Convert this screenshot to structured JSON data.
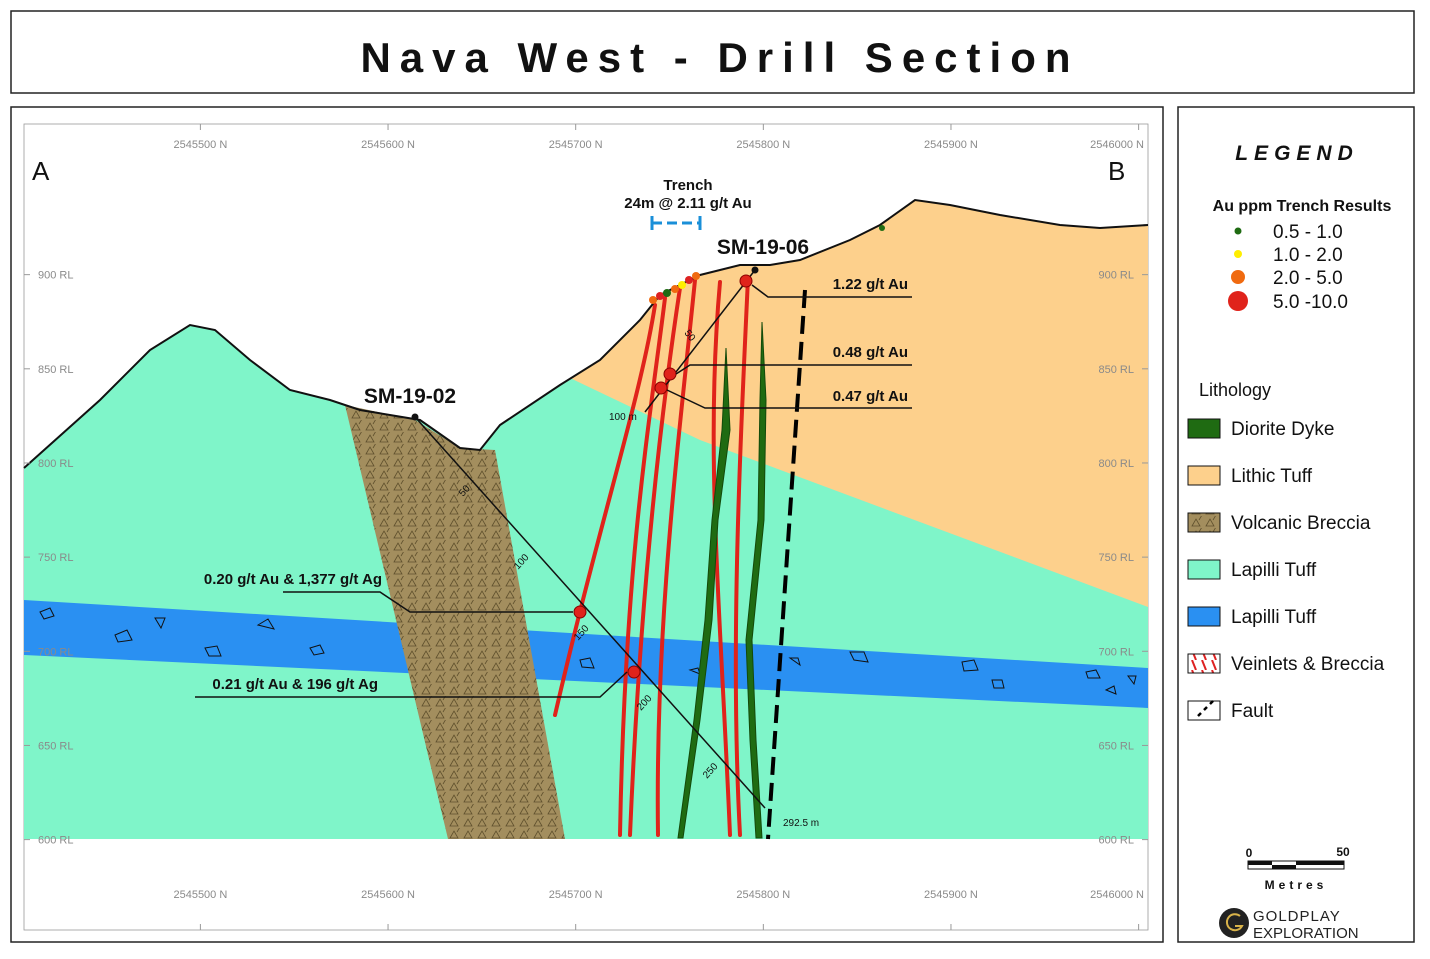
{
  "title": "Nava West - Drill Section",
  "section": {
    "corner_labels": [
      "A",
      "B"
    ],
    "xlim": [
      2545406,
      2546005
    ],
    "ylim": [
      552,
      980
    ],
    "northing_ticks": [
      {
        "value": 2545500,
        "label": "2545500 N"
      },
      {
        "value": 2545600,
        "label": "2545600 N"
      },
      {
        "value": 2545700,
        "label": "2545700 N"
      },
      {
        "value": 2545800,
        "label": "2545800 N"
      },
      {
        "value": 2545900,
        "label": "2545900 N"
      },
      {
        "value": 2546000,
        "label": "2546000 N"
      }
    ],
    "rl_ticks": [
      {
        "value": 900,
        "label": "900 RL"
      },
      {
        "value": 850,
        "label": "850 RL"
      },
      {
        "value": 800,
        "label": "800 RL"
      },
      {
        "value": 750,
        "label": "750 RL"
      },
      {
        "value": 700,
        "label": "700 RL"
      },
      {
        "value": 650,
        "label": "650 RL"
      },
      {
        "value": 600,
        "label": "600 RL"
      }
    ],
    "trench": {
      "label": "Trench",
      "result": "24m @ 2.11 g/t Au"
    },
    "holes": [
      {
        "name": "SM-19-02",
        "depth_labels": [
          "50",
          "100",
          "150",
          "200",
          "250"
        ],
        "end_depth": "292.5 m"
      },
      {
        "name": "SM-19-06",
        "depth_labels": [
          "50",
          "100 m"
        ]
      }
    ],
    "intercepts": [
      "1.22 g/t Au",
      "0.48 g/t Au",
      "0.47 g/t Au",
      "0.20 g/t Au & 1,377 g/t Ag",
      "0.21 g/t Au & 196 g/t Ag"
    ]
  },
  "legend": {
    "title": "LEGEND",
    "trench_title": "Au ppm Trench Results",
    "trench_classes": [
      "0.5 - 1.0",
      "1.0 - 2.0",
      "2.0 - 5.0",
      "5.0 -10.0"
    ],
    "lithology_title": "Lithology",
    "lithology": [
      "Diorite Dyke",
      "Lithic Tuff",
      "Volcanic Breccia",
      "Lapilli Tuff",
      "Lapilli Tuff",
      "Veinlets & Breccia",
      "Fault"
    ]
  },
  "scale_bar": {
    "labels": [
      "0",
      "50"
    ],
    "unit": "Metres"
  },
  "logo": [
    "GOLDPLAY",
    "EXPLORATION"
  ]
}
